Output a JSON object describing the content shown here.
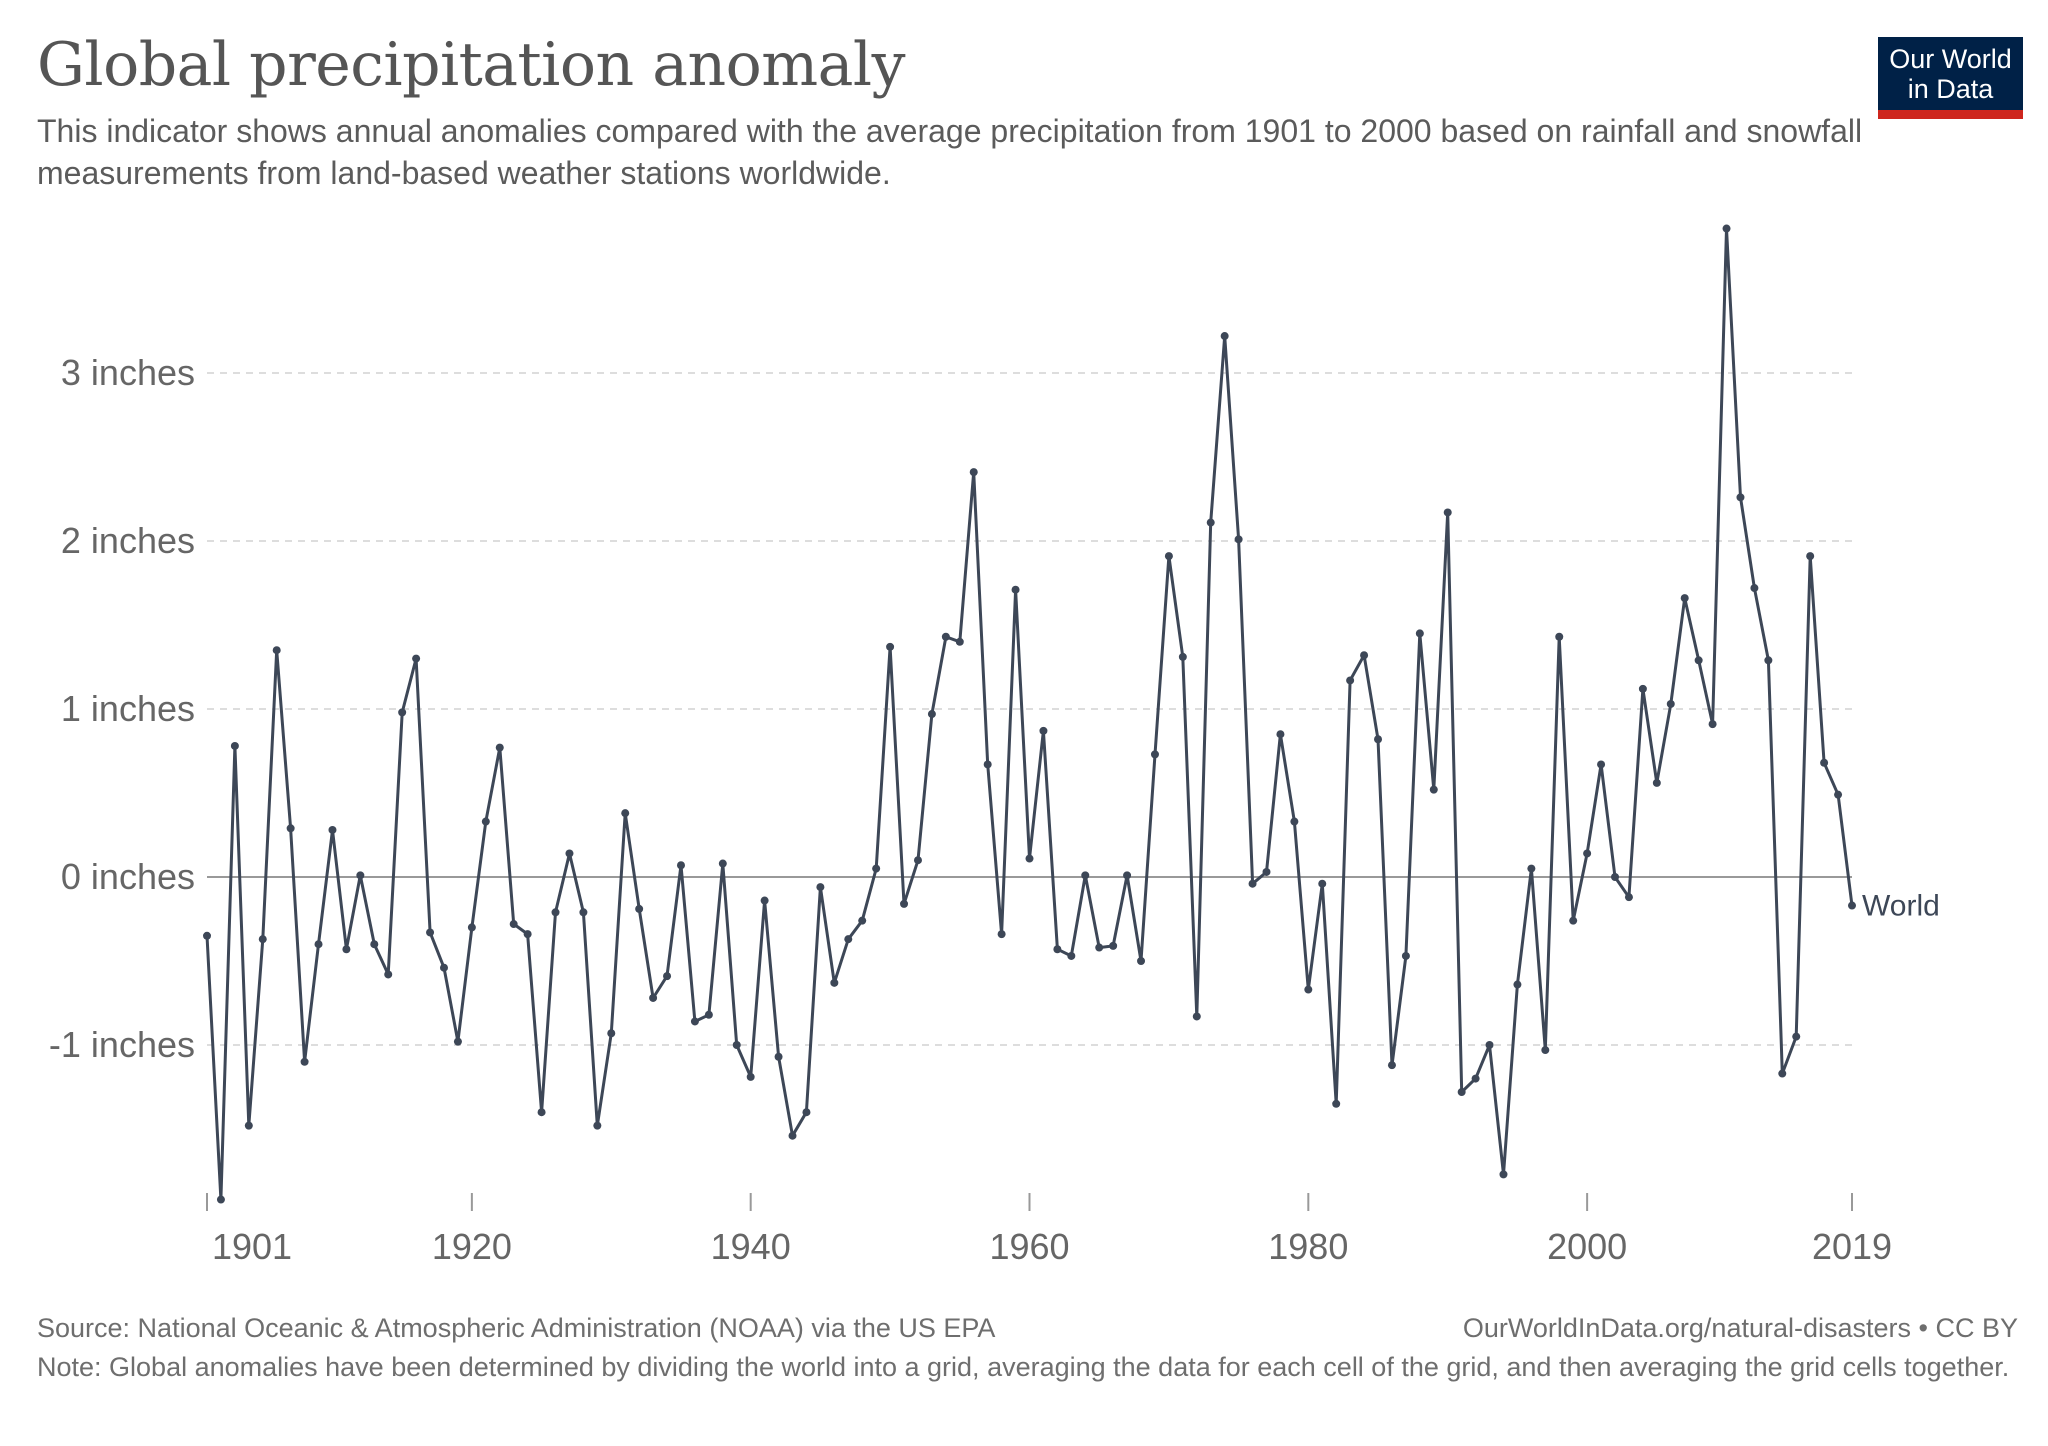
{
  "header": {
    "title": "Global precipitation anomaly",
    "subtitle": "This indicator shows annual anomalies compared with the average precipitation from 1901 to 2000 based on rainfall and snowfall measurements from land-based weather stations worldwide.",
    "logo_line1": "Our World",
    "logo_line2": "in Data"
  },
  "footer": {
    "source": "Source: National Oceanic & Atmospheric Administration (NOAA) via the US EPA",
    "credit": "OurWorldInData.org/natural-disasters • CC BY",
    "note": "Note: Global anomalies have been determined by dividing the world into a grid, averaging the data for each cell of the grid, and then averaging the grid cells together."
  },
  "colors": {
    "series": "#3d4757",
    "grid": "#dddddd",
    "zero_line": "#999999",
    "logo_bg": "#002147",
    "logo_bar": "#ce261e"
  },
  "chart_data": {
    "type": "line",
    "xlim": [
      1901,
      2019
    ],
    "ylim": [
      -1.9,
      3.9
    ],
    "y_ticks": [
      {
        "value": -1,
        "label": "-1 inches"
      },
      {
        "value": 0,
        "label": "0 inches"
      },
      {
        "value": 1,
        "label": "1 inches"
      },
      {
        "value": 2,
        "label": "2 inches"
      },
      {
        "value": 3,
        "label": "3 inches"
      }
    ],
    "x_ticks": [
      {
        "value": 1901,
        "label": "1901"
      },
      {
        "value": 1920,
        "label": "1920"
      },
      {
        "value": 1940,
        "label": "1940"
      },
      {
        "value": 1960,
        "label": "1960"
      },
      {
        "value": 1980,
        "label": "1980"
      },
      {
        "value": 2000,
        "label": "2000"
      },
      {
        "value": 2019,
        "label": "2019"
      }
    ],
    "grid": true,
    "series": [
      {
        "name": "World",
        "x": [
          1901,
          1902,
          1903,
          1904,
          1905,
          1906,
          1907,
          1908,
          1909,
          1910,
          1911,
          1912,
          1913,
          1914,
          1915,
          1916,
          1917,
          1918,
          1919,
          1920,
          1921,
          1922,
          1923,
          1924,
          1925,
          1926,
          1927,
          1928,
          1929,
          1930,
          1931,
          1932,
          1933,
          1934,
          1935,
          1936,
          1937,
          1938,
          1939,
          1940,
          1941,
          1942,
          1943,
          1944,
          1945,
          1946,
          1947,
          1948,
          1949,
          1950,
          1951,
          1952,
          1953,
          1954,
          1955,
          1956,
          1957,
          1958,
          1959,
          1960,
          1961,
          1962,
          1963,
          1964,
          1965,
          1966,
          1967,
          1968,
          1969,
          1970,
          1971,
          1972,
          1973,
          1974,
          1975,
          1976,
          1977,
          1978,
          1979,
          1980,
          1981,
          1982,
          1983,
          1984,
          1985,
          1986,
          1987,
          1988,
          1989,
          1990,
          1991,
          1992,
          1993,
          1994,
          1995,
          1996,
          1997,
          1998,
          1999,
          2000,
          2001,
          2002,
          2003,
          2004,
          2005,
          2006,
          2007,
          2008,
          2009,
          2010,
          2011,
          2012,
          2013,
          2014,
          2015,
          2016,
          2017,
          2018,
          2019
        ],
        "y": [
          -0.35,
          -1.92,
          0.78,
          -1.48,
          -0.37,
          1.35,
          0.29,
          -1.1,
          -0.4,
          0.28,
          -0.43,
          0.01,
          -0.4,
          -0.58,
          0.98,
          1.3,
          -0.33,
          -0.54,
          -0.98,
          -0.3,
          0.33,
          0.77,
          -0.28,
          -0.34,
          -1.4,
          -0.21,
          0.14,
          -0.21,
          -1.48,
          -0.93,
          0.38,
          -0.19,
          -0.72,
          -0.59,
          0.07,
          -0.86,
          -0.82,
          0.08,
          -1.0,
          -1.19,
          -0.14,
          -1.07,
          -1.54,
          -1.4,
          -0.06,
          -0.63,
          -0.37,
          -0.26,
          0.05,
          1.37,
          -0.16,
          0.1,
          0.97,
          1.43,
          1.4,
          2.41,
          0.67,
          -0.34,
          1.71,
          0.11,
          0.87,
          -0.43,
          -0.47,
          0.01,
          -0.42,
          -0.41,
          0.01,
          -0.5,
          0.73,
          1.91,
          1.31,
          -0.83,
          2.11,
          3.22,
          2.01,
          -0.04,
          0.03,
          0.85,
          0.33,
          -0.67,
          -0.04,
          -1.35,
          1.17,
          1.32,
          0.82,
          -1.12,
          -0.47,
          1.45,
          0.52,
          2.17,
          -1.28,
          -1.2,
          -1.0,
          -1.77,
          -0.64,
          0.05,
          -1.03,
          1.43,
          -0.26,
          0.14,
          0.67,
          0.0,
          -0.12,
          1.12,
          0.56,
          1.03,
          1.66,
          1.29,
          0.91,
          3.86,
          2.26,
          1.72,
          1.29,
          -1.17,
          -0.95,
          1.91,
          0.68,
          0.49,
          -0.17
        ]
      }
    ]
  }
}
